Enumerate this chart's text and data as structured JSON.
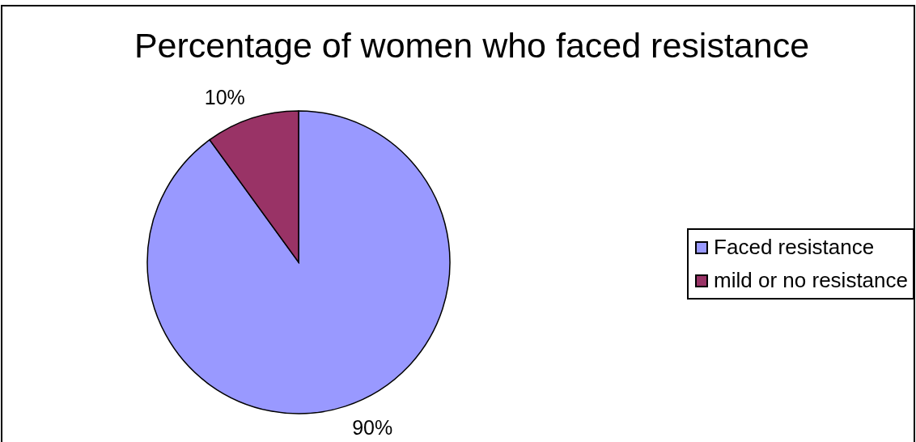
{
  "chart_data": {
    "type": "pie",
    "title": "Percentage of women who faced resistance",
    "categories": [
      "Faced resistance",
      "mild or no resistance"
    ],
    "values": [
      90,
      10
    ],
    "colors": [
      "#9999ff",
      "#993366"
    ],
    "value_labels": [
      "90%",
      "10%"
    ],
    "legend": "right"
  }
}
